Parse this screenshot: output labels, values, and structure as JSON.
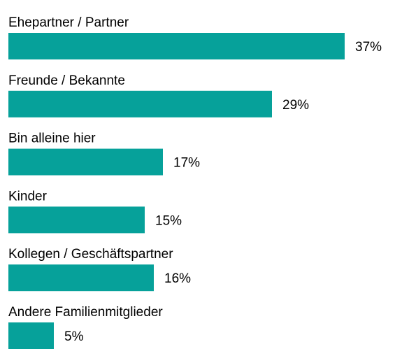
{
  "chart_data": {
    "type": "bar",
    "orientation": "horizontal",
    "categories": [
      "Ehepartner / Partner",
      "Freunde / Bekannte",
      "Bin alleine hier",
      "Kinder",
      "Kollegen / Geschäftspartner",
      "Andere Familienmitglieder"
    ],
    "values": [
      37,
      29,
      17,
      15,
      16,
      5
    ],
    "value_labels": [
      "37%",
      "29%",
      "17%",
      "15%",
      "16%",
      "5%"
    ],
    "color": "#06a19a"
  }
}
